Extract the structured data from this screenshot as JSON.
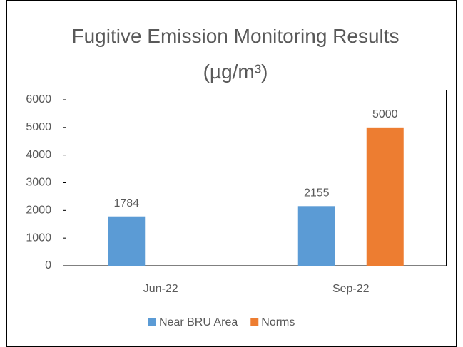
{
  "chart_data": {
    "type": "bar",
    "title": "Fugitive Emission Monitoring Results (µg/m³)",
    "categories": [
      "Jun-22",
      "Sep-22"
    ],
    "series": [
      {
        "name": "Near BRU Area",
        "color": "#5b9bd5",
        "values": [
          1784,
          2155
        ]
      },
      {
        "name": "Norms",
        "color": "#ed7d31",
        "values": [
          null,
          5000
        ]
      }
    ],
    "ylim": [
      0,
      6000
    ],
    "yticks": [
      0,
      1000,
      2000,
      3000,
      4000,
      5000,
      6000
    ],
    "legend": "bottom",
    "data_labels": true
  }
}
